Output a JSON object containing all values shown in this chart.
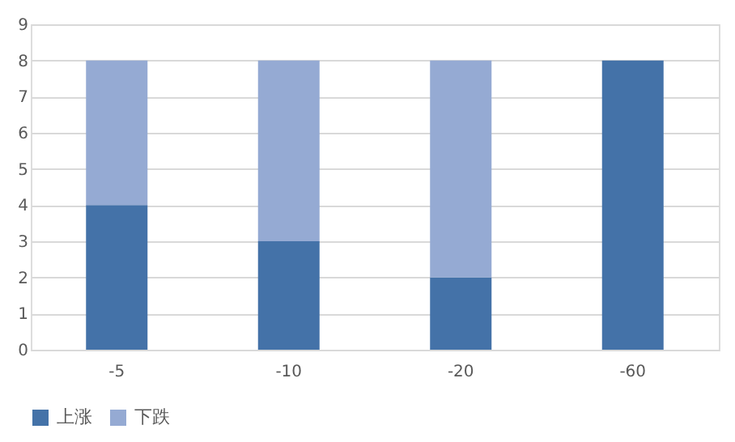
{
  "chart_data": {
    "type": "bar",
    "stacked": true,
    "categories": [
      "-5",
      "-10",
      "-20",
      "-60"
    ],
    "series": [
      {
        "name": "上涨",
        "color": "#4472a8",
        "values": [
          4,
          3,
          2,
          8
        ]
      },
      {
        "name": "下跌",
        "color": "#95aad3",
        "values": [
          4,
          5,
          6,
          0
        ]
      }
    ],
    "ylim": [
      0,
      9
    ],
    "yticks": [
      0,
      1,
      2,
      3,
      4,
      5,
      6,
      7,
      8,
      9
    ],
    "grid": "y",
    "legend": "bottom"
  }
}
